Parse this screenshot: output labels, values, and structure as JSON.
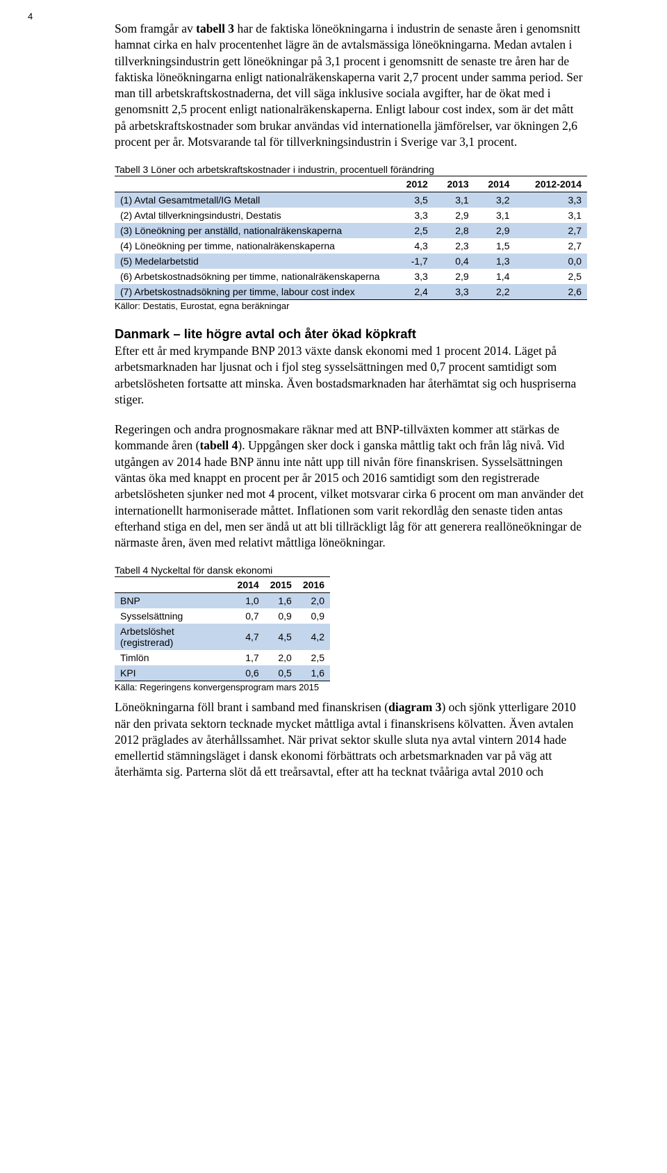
{
  "page_number": "4",
  "para1_prefix": "Som framgår av ",
  "para1_bold": "tabell 3",
  "para1_rest": " har de faktiska löneökningarna i industrin de senaste åren i genomsnitt hamnat cirka en halv procentenhet lägre än de avtalsmässiga löneökningarna. Medan avtalen i tillverkningsindustrin gett löneökningar på 3,1 procent i genomsnitt de senaste tre åren har de faktiska löneökningarna enligt nationalräkenskaperna varit 2,7 procent under samma period. Ser man till arbetskraftskostnaderna, det vill säga inklusive sociala avgifter, har de ökat med i genomsnitt 2,5 procent enligt nationalräkenskaperna. Enligt labour cost index, som är det mått på arbetskraftskostnader som brukar användas vid internationella jämförelser, var ökningen 2,6 procent per år. Motsvarande tal för tillverkningsindustrin i Sverige var 3,1 procent.",
  "table3": {
    "title": "Tabell 3 Löner och arbetskraftskostnader i industrin, procentuell förändring",
    "columns": [
      "",
      "2012",
      "2013",
      "2014",
      "2012-2014"
    ],
    "rows": [
      {
        "label": "(1) Avtal Gesamtmetall/IG Metall",
        "vals": [
          "3,5",
          "3,1",
          "3,2",
          "3,3"
        ],
        "hl": true
      },
      {
        "label": "(2) Avtal tillverkningsindustri, Destatis",
        "vals": [
          "3,3",
          "2,9",
          "3,1",
          "3,1"
        ],
        "hl": false
      },
      {
        "label": "(3) Löneökning per anställd, nationalräkenskaperna",
        "vals": [
          "2,5",
          "2,8",
          "2,9",
          "2,7"
        ],
        "hl": true
      },
      {
        "label": "(4) Löneökning per timme, nationalräkenskaperna",
        "vals": [
          "4,3",
          "2,3",
          "1,5",
          "2,7"
        ],
        "hl": false
      },
      {
        "label": "(5) Medelarbetstid",
        "vals": [
          "-1,7",
          "0,4",
          "1,3",
          "0,0"
        ],
        "hl": true
      },
      {
        "label": "(6) Arbetskostnadsökning per timme, nationalräkenskaperna",
        "vals": [
          "3,3",
          "2,9",
          "1,4",
          "2,5"
        ],
        "hl": false
      },
      {
        "label": "(7) Arbetskostnadsökning per timme, labour cost index",
        "vals": [
          "2,4",
          "3,3",
          "2,2",
          "2,6"
        ],
        "hl": true
      }
    ],
    "source": "Källor: Destatis, Eurostat, egna beräkningar",
    "highlight_color": "#c4d6ec"
  },
  "section2_title": "Danmark – lite högre avtal och åter ökad köpkraft",
  "para2": "Efter ett år med krympande BNP 2013 växte dansk ekonomi med 1 procent 2014. Läget på arbetsmarknaden har ljusnat och i fjol steg sysselsättningen med 0,7 procent samtidigt som arbetslösheten fortsatte att minska. Även bostadsmarknaden har återhämtat sig och huspriserna stiger.",
  "para3_prefix": "Regeringen och andra prognosmakare räknar med att BNP-tillväxten kommer att stärkas de kommande åren (",
  "para3_bold": "tabell 4",
  "para3_rest": "). Uppgången sker dock i ganska måttlig takt och från låg nivå. Vid utgången av 2014 hade BNP ännu inte nått upp till nivån före finanskrisen. Sysselsättningen väntas öka med knappt en procent per år 2015 och 2016 samtidigt som den registrerade arbetslösheten sjunker ned mot 4 procent, vilket motsvarar cirka 6 procent om man använder det internationellt harmoniserade måttet. Inflationen som varit rekordlåg den senaste tiden antas efterhand stiga en del, men ser ändå ut att bli tillräckligt låg för att generera reallöneökningar de närmaste åren, även med relativt måttliga löneökningar.",
  "table4": {
    "title": "Tabell 4 Nyckeltal för dansk ekonomi",
    "columns": [
      "",
      "2014",
      "2015",
      "2016"
    ],
    "rows": [
      {
        "label": "BNP",
        "vals": [
          "1,0",
          "1,6",
          "2,0"
        ],
        "hl": true
      },
      {
        "label": "Sysselsättning",
        "vals": [
          "0,7",
          "0,9",
          "0,9"
        ],
        "hl": false
      },
      {
        "label": "Arbetslöshet (registrerad)",
        "vals": [
          "4,7",
          "4,5",
          "4,2"
        ],
        "hl": true
      },
      {
        "label": "Timlön",
        "vals": [
          "1,7",
          "2,0",
          "2,5"
        ],
        "hl": false
      },
      {
        "label": "KPI",
        "vals": [
          "0,6",
          "0,5",
          "1,6"
        ],
        "hl": true
      }
    ],
    "source": "Källa: Regeringens konvergensprogram mars 2015"
  },
  "para4_prefix": "Löneökningarna föll brant i samband med finanskrisen (",
  "para4_bold": "diagram 3",
  "para4_rest": ") och sjönk ytterligare 2010 när den privata sektorn tecknade mycket måttliga avtal i finanskrisens kölvatten. Även avtalen 2012 präglades av återhållssamhet. När privat sektor skulle sluta nya avtal vintern 2014 hade emellertid stämningsläget i dansk ekonomi förbättrats och arbetsmarknaden var på väg att återhämta sig. Parterna slöt då ett treårsavtal, efter att ha tecknat tvååriga avtal 2010 och"
}
